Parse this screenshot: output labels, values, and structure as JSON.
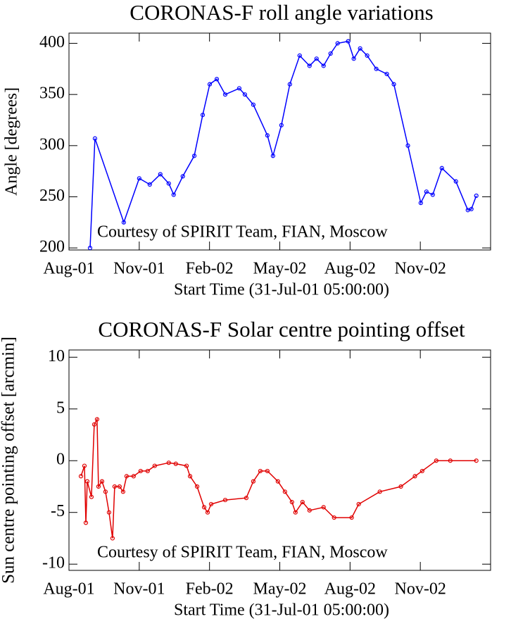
{
  "chart_data": [
    {
      "type": "line",
      "title": "CORONAS-F roll angle variations",
      "xlabel": "Start Time (31-Jul-01 05:00:00)",
      "ylabel": "Angle [degrees]",
      "annotation": "Courtesy of SPIRIT Team, FIAN, Moscow",
      "color": "#0000ff",
      "x": [
        0.9,
        1.11,
        2.34,
        3.0,
        3.45,
        3.9,
        4.26,
        4.47,
        4.86,
        5.35,
        5.71,
        6.01,
        6.31,
        6.67,
        7.27,
        7.51,
        7.87,
        8.47,
        8.71,
        9.07,
        9.43,
        9.85,
        10.27,
        10.57,
        10.87,
        11.17,
        11.47,
        11.92,
        12.16,
        12.43,
        12.73,
        13.12,
        13.57,
        13.87,
        14.47,
        15.02,
        15.26,
        15.53,
        15.92,
        16.52,
        17.03,
        17.18,
        17.39
      ],
      "values": [
        200,
        307,
        225,
        268,
        262,
        272,
        263,
        252,
        270,
        290,
        330,
        360,
        365,
        350,
        356,
        350,
        340,
        310,
        290,
        320,
        360,
        388,
        378,
        385,
        378,
        390,
        400,
        402,
        385,
        395,
        388,
        375,
        370,
        360,
        300,
        244,
        255,
        252,
        278,
        265,
        237,
        238,
        251
      ],
      "xlim": [
        0,
        18
      ],
      "ylim": [
        198,
        410
      ],
      "xticks": [
        {
          "value": 0,
          "label": "Aug-01"
        },
        {
          "value": 3,
          "label": "Nov-01"
        },
        {
          "value": 6,
          "label": "Feb-02"
        },
        {
          "value": 9,
          "label": "May-02"
        },
        {
          "value": 12,
          "label": "Aug-02"
        },
        {
          "value": 15,
          "label": "Nov-02"
        }
      ],
      "yticks": [
        200,
        250,
        300,
        350,
        400
      ]
    },
    {
      "type": "line",
      "title": "CORONAS-F Solar centre pointing offset",
      "xlabel": "Start Time (31-Jul-01 05:00:00)",
      "ylabel": "Sun centre pointing offset [arcmin]",
      "annotation": "Courtesy of SPIRIT Team, FIAN, Moscow",
      "color": "#e00000",
      "x": [
        0.51,
        0.66,
        0.72,
        0.78,
        0.96,
        1.08,
        1.2,
        1.26,
        1.41,
        1.56,
        1.71,
        1.86,
        1.95,
        2.16,
        2.31,
        2.46,
        2.76,
        3.06,
        3.36,
        3.66,
        4.26,
        4.56,
        5.02,
        5.17,
        5.47,
        5.77,
        5.92,
        6.07,
        6.67,
        7.57,
        7.87,
        8.17,
        8.47,
        8.92,
        9.22,
        9.52,
        9.67,
        9.97,
        10.27,
        10.87,
        11.32,
        12.07,
        12.37,
        13.27,
        14.17,
        14.77,
        15.08,
        15.68,
        16.28,
        17.39
      ],
      "values": [
        -1.5,
        -0.5,
        -6,
        -2,
        -3.5,
        3.5,
        4,
        -2.5,
        -2,
        -3,
        -5,
        -7.5,
        -2.5,
        -2.5,
        -3,
        -1.5,
        -1.5,
        -1,
        -1,
        -0.5,
        -0.2,
        -0.3,
        -0.5,
        -1.5,
        -2.5,
        -4.5,
        -5,
        -4.2,
        -3.8,
        -3.6,
        -2,
        -1,
        -1,
        -2,
        -3,
        -4,
        -5,
        -4,
        -4.8,
        -4.5,
        -5.5,
        -5.5,
        -4.2,
        -3,
        -2.5,
        -1.5,
        -1,
        0,
        0,
        0
      ],
      "xlim": [
        0,
        18
      ],
      "ylim": [
        -10.6,
        10.7
      ],
      "xticks": [
        {
          "value": 0,
          "label": "Aug-01"
        },
        {
          "value": 3,
          "label": "Nov-01"
        },
        {
          "value": 6,
          "label": "Feb-02"
        },
        {
          "value": 9,
          "label": "May-02"
        },
        {
          "value": 12,
          "label": "Aug-02"
        },
        {
          "value": 15,
          "label": "Nov-02"
        }
      ],
      "yticks": [
        -10,
        -5,
        0,
        5,
        10
      ]
    }
  ]
}
